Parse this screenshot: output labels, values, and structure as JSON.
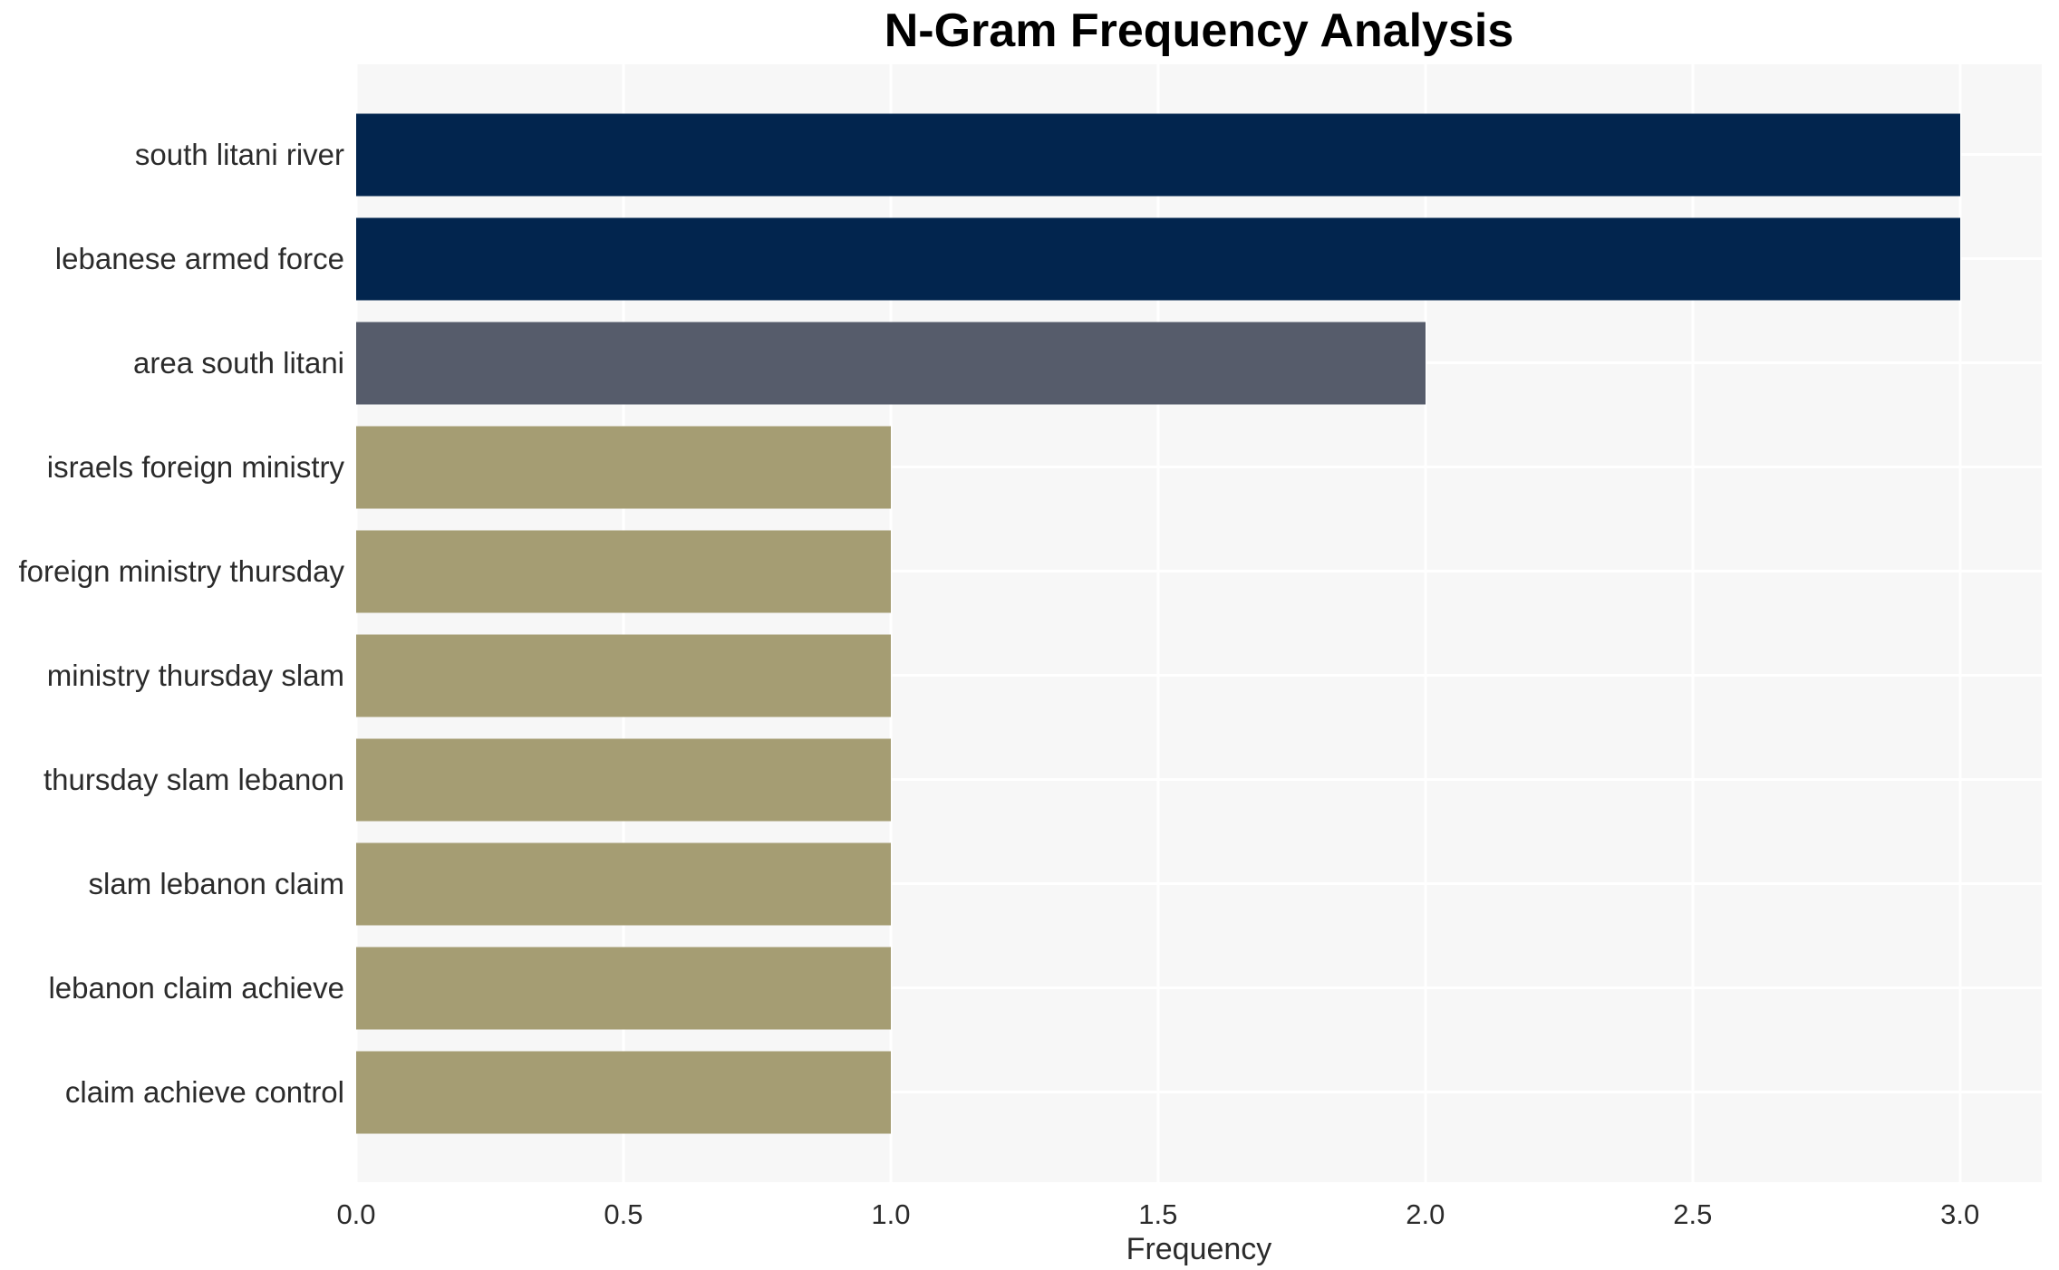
{
  "chart_data": {
    "type": "bar",
    "orientation": "horizontal",
    "title": "N-Gram Frequency Analysis",
    "xlabel": "Frequency",
    "ylabel": "",
    "categories": [
      "south litani river",
      "lebanese armed force",
      "area south litani",
      "israels foreign ministry",
      "foreign ministry thursday",
      "ministry thursday slam",
      "thursday slam lebanon",
      "slam lebanon claim",
      "lebanon claim achieve",
      "claim achieve control"
    ],
    "values": [
      3,
      3,
      2,
      1,
      1,
      1,
      1,
      1,
      1,
      1
    ],
    "bar_colors": [
      "#02254e",
      "#02254e",
      "#565c6b",
      "#a59d73",
      "#a59d73",
      "#a59d73",
      "#a59d73",
      "#a59d73",
      "#a59d73",
      "#a59d73"
    ],
    "x_ticks": [
      0,
      0.5,
      1,
      1.5,
      2,
      2.5,
      3
    ],
    "x_tick_labels": [
      "0.0",
      "0.5",
      "1.0",
      "1.5",
      "2.0",
      "2.5",
      "3.0"
    ],
    "xlim": [
      0,
      3.153
    ],
    "grid": true,
    "legend": false,
    "colors": {
      "plot_background": "#f7f7f7",
      "gridline": "#ffffff",
      "figure_background": "#ffffff",
      "text": "#2b2b2b",
      "title": "#000000"
    }
  }
}
